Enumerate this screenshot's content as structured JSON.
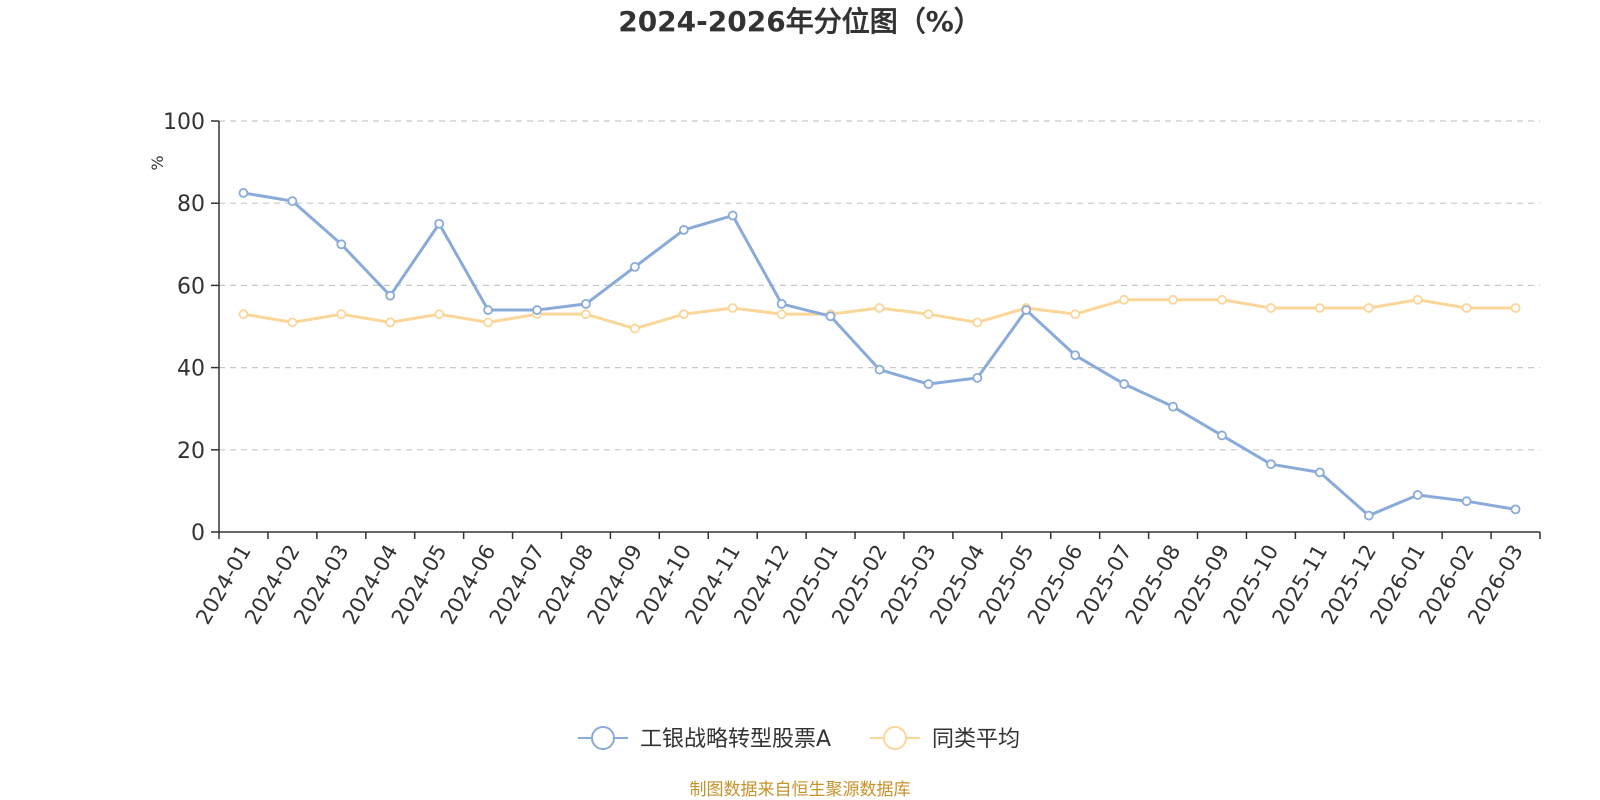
{
  "title": "2024-2026年分位图（%）",
  "source": "制图数据来自恒生聚源数据库",
  "colors": {
    "series_1": "#8aabd9",
    "series_2": "#fbd699",
    "axis_unit": "#ff0000",
    "source": "#c8922a",
    "grid": "#c8c8c8",
    "axis": "#333333"
  },
  "chart_data": {
    "type": "line",
    "title": "2024-2026年分位图（%）",
    "ylabel": "%",
    "ylim": [
      0,
      100
    ],
    "yticks": [
      0,
      20,
      40,
      60,
      80,
      100
    ],
    "grid": true,
    "legend_position": "bottom-center",
    "categories": [
      "2024-01",
      "2024-02",
      "2024-03",
      "2024-04",
      "2024-05",
      "2024-06",
      "2024-07",
      "2024-08",
      "2024-09",
      "2024-10",
      "2024-11",
      "2024-12",
      "2025-01",
      "2025-02",
      "2025-03",
      "2025-04",
      "2025-05",
      "2025-06",
      "2025-07",
      "2025-08",
      "2025-09",
      "2025-10",
      "2025-11",
      "2025-12",
      "2026-01",
      "2026-02",
      "2026-03"
    ],
    "series": [
      {
        "name": "工银战略转型股票A",
        "values": [
          82.5,
          80.5,
          70.0,
          57.5,
          75.0,
          54.0,
          54.0,
          55.5,
          64.5,
          73.5,
          77.0,
          55.5,
          52.5,
          39.5,
          36.0,
          37.5,
          54.0,
          43.0,
          36.0,
          30.5,
          23.5,
          16.5,
          14.5,
          4.0,
          9.0,
          7.5,
          5.5
        ]
      },
      {
        "name": "同类平均",
        "values": [
          53.0,
          51.0,
          53.0,
          51.0,
          53.0,
          51.0,
          53.0,
          53.0,
          49.5,
          53.0,
          54.5,
          53.0,
          53.0,
          54.5,
          53.0,
          51.0,
          54.5,
          53.0,
          56.5,
          56.5,
          56.5,
          54.5,
          54.5,
          54.5,
          56.5,
          54.5,
          54.5
        ]
      }
    ]
  }
}
